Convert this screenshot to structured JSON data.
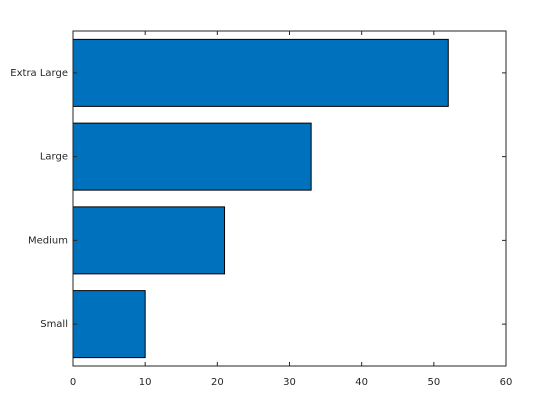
{
  "chart_data": {
    "type": "barh",
    "categories": [
      "Small",
      "Medium",
      "Large",
      "Extra Large"
    ],
    "values": [
      10,
      21,
      33,
      52
    ],
    "color": "#0072bd",
    "xlim": [
      0,
      60
    ],
    "xticks": [
      0,
      10,
      20,
      30,
      40,
      50,
      60
    ],
    "grid": false
  }
}
